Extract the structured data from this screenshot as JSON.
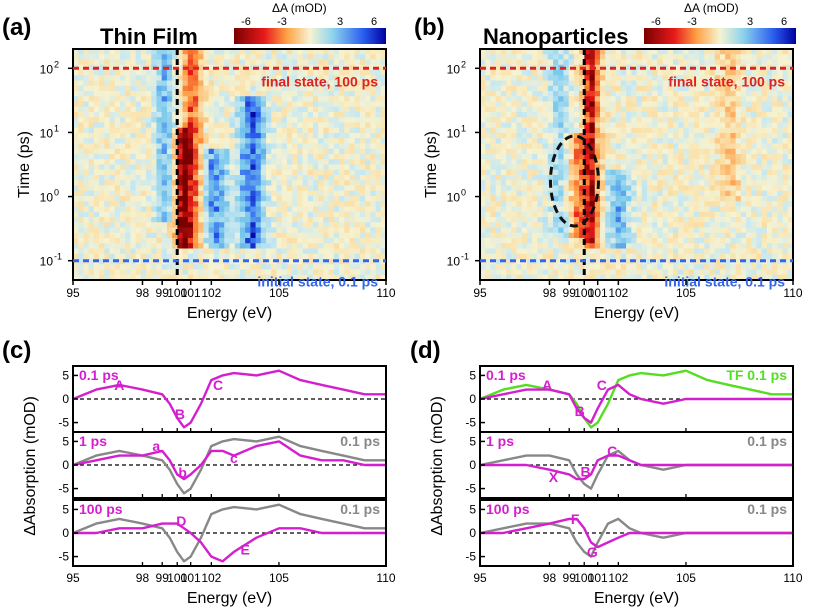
{
  "panels": {
    "a": {
      "letter": "(a)",
      "title": "Thin Film",
      "ylabel": "Time (ps)",
      "xlabel": "Energy (eV)",
      "xticks": [
        "95",
        "98",
        "99",
        "100",
        "101",
        "102",
        "105",
        "110"
      ],
      "yticks": [
        "10",
        "10",
        "10",
        "10"
      ],
      "yexps": [
        "2",
        "1",
        "0",
        "-1"
      ],
      "final_label": "final state, 100 ps",
      "initial_label": "initial state, 0.1 ps"
    },
    "b": {
      "letter": "(b)",
      "title": "Nanoparticles",
      "ylabel": "Time (ps)",
      "xlabel": "Energy (eV)",
      "xticks": [
        "95",
        "98",
        "99",
        "100",
        "101",
        "102",
        "105",
        "110"
      ],
      "yticks": [
        "10",
        "10",
        "10",
        "10"
      ],
      "yexps": [
        "2",
        "1",
        "0",
        "-1"
      ],
      "final_label": "final state, 100 ps",
      "initial_label": "initial state, 0.1 ps"
    },
    "c": {
      "letter": "(c)",
      "ylabel": "ΔAbsorption (mOD)",
      "xlabel": "Energy (eV)",
      "xticks": [
        "95",
        "98",
        "99",
        "100",
        "101",
        "102",
        "105",
        "110"
      ],
      "sub": [
        {
          "time": "0.1 ps",
          "ref": "",
          "yticks": [
            "5",
            "0",
            "-5"
          ],
          "letters": [
            {
              "t": "A",
              "e": 97.0,
              "v": 3
            },
            {
              "t": "B",
              "e": 100.2,
              "v": -3.2
            },
            {
              "t": "C",
              "e": 102.3,
              "v": 3
            }
          ]
        },
        {
          "time": "1 ps",
          "ref": "0.1 ps",
          "yticks": [
            "5",
            "0",
            "-5"
          ],
          "letters": [
            {
              "t": "a",
              "e": 98.7,
              "v": 4
            },
            {
              "t": "b",
              "e": 100.4,
              "v": -1.6
            },
            {
              "t": "c",
              "e": 103.0,
              "v": 1.5
            }
          ]
        },
        {
          "time": "100 ps",
          "ref": "0.1 ps",
          "yticks": [
            "5",
            "0",
            "-5"
          ],
          "letters": [
            {
              "t": "D",
              "e": 100.3,
              "v": 2.5
            },
            {
              "t": "E",
              "e": 103.5,
              "v": -3.5
            }
          ]
        }
      ]
    },
    "d": {
      "letter": "(d)",
      "ylabel": "ΔAbsorption (mOD)",
      "xlabel": "Energy (eV)",
      "xticks": [
        "95",
        "98",
        "99",
        "100",
        "101",
        "102",
        "105",
        "110"
      ],
      "sub": [
        {
          "time": "0.1 ps",
          "ref": "TF 0.1 ps",
          "yticks": [
            "5",
            "0",
            "-5"
          ],
          "letters": [
            {
              "t": "A",
              "e": 97.9,
              "v": 3
            },
            {
              "t": "B",
              "e": 99.7,
              "v": -2.5
            },
            {
              "t": "C",
              "e": 101.2,
              "v": 3
            }
          ]
        },
        {
          "time": "1 ps",
          "ref": "0.1 ps",
          "yticks": [
            "5",
            "0",
            "-5"
          ],
          "letters": [
            {
              "t": "C",
              "e": 101.7,
              "v": 3
            },
            {
              "t": "X",
              "e": 98.2,
              "v": -2.5
            },
            {
              "t": "B",
              "e": 100.1,
              "v": -1.4
            }
          ]
        },
        {
          "time": "100 ps",
          "ref": "0.1 ps",
          "yticks": [
            "5",
            "0",
            "-5"
          ],
          "letters": [
            {
              "t": "F",
              "e": 99.4,
              "v": 3
            },
            {
              "t": "G",
              "e": 100.6,
              "v": -4.0
            }
          ]
        }
      ]
    }
  },
  "colorbar": {
    "title": "ΔA (mOD)",
    "ticks": [
      "-6",
      "-3",
      "3",
      "6"
    ]
  },
  "colors": {
    "magenta": "#d41fcf",
    "gray": "#888888",
    "green": "#55dd22",
    "red_dash": "#dd2222",
    "blue_dash": "#3366ee"
  },
  "chart_data": [
    {
      "type": "heatmap",
      "panel": "a",
      "title": "Thin Film",
      "xlabel": "Energy (eV)",
      "ylabel": "Time (ps)",
      "xlim": [
        95,
        110
      ],
      "ylim": [
        0.05,
        200
      ],
      "yscale": "log",
      "zlabel": "ΔA (mOD)",
      "zlim": [
        -7,
        7
      ],
      "features": [
        {
          "e": 100.4,
          "t": [
            0.2,
            10
          ],
          "v": -6
        },
        {
          "e": 101.0,
          "t": [
            0.2,
            200
          ],
          "v": -4
        },
        {
          "e": 102.2,
          "t": [
            0.2,
            5
          ],
          "v": 4
        },
        {
          "e": 103.8,
          "t": [
            0.2,
            30
          ],
          "v": 5
        },
        {
          "e": 99.2,
          "t": [
            0.5,
            200
          ],
          "v": 3
        }
      ],
      "marked_lines": {
        "vertical_ev": 100,
        "final_ps": 100,
        "initial_ps": 0.1
      }
    },
    {
      "type": "heatmap",
      "panel": "b",
      "title": "Nanoparticles",
      "xlabel": "Energy (eV)",
      "ylabel": "Time (ps)",
      "xlim": [
        95,
        110
      ],
      "ylim": [
        0.05,
        200
      ],
      "yscale": "log",
      "zlabel": "ΔA (mOD)",
      "zlim": [
        -7,
        7
      ],
      "features": [
        {
          "e": 100.5,
          "t": [
            0.2,
            200
          ],
          "v": -6
        },
        {
          "e": 99.5,
          "t": [
            0.3,
            8
          ],
          "v": -3
        },
        {
          "e": 98.5,
          "t": [
            0.3,
            200
          ],
          "v": 2
        },
        {
          "e": 102.0,
          "t": [
            0.2,
            2
          ],
          "v": 3
        },
        {
          "e": 107.0,
          "t": [
            1,
            200
          ],
          "v": -1.5
        }
      ],
      "marked_lines": {
        "vertical_ev": 100,
        "final_ps": 100,
        "initial_ps": 0.1
      }
    },
    {
      "type": "line",
      "panel": "c",
      "xlabel": "Energy (eV)",
      "ylabel": "ΔAbsorption (mOD)",
      "xlim": [
        95,
        110
      ],
      "ylim": [
        -7,
        7
      ],
      "x": [
        95,
        96,
        97,
        98,
        99,
        99.5,
        100,
        100.5,
        101,
        101.5,
        102,
        102.5,
        103,
        104,
        105,
        106,
        107,
        108,
        109,
        110
      ],
      "series": [
        {
          "subplot": "0.1 ps",
          "values": [
            0,
            2,
            3,
            2,
            1,
            -1,
            -4,
            -6,
            -5,
            -1,
            4,
            5,
            5.5,
            5,
            6,
            4,
            3,
            2,
            1,
            1
          ]
        },
        {
          "subplot": "1 ps",
          "values": [
            0,
            1,
            2,
            2,
            3,
            1,
            -2,
            -3,
            -2,
            0,
            3,
            3,
            2,
            4,
            5,
            2,
            1,
            1,
            0,
            0
          ]
        },
        {
          "subplot": "1 ps",
          "name": "0.1 ps",
          "values": [
            0,
            2,
            3,
            2,
            1,
            -1,
            -4,
            -6,
            -5,
            -1,
            4,
            5,
            5.5,
            5,
            6,
            4,
            3,
            2,
            1,
            1
          ]
        },
        {
          "subplot": "100 ps",
          "values": [
            0,
            0,
            1,
            1,
            2,
            2,
            2,
            1,
            0,
            -2,
            -5,
            -6,
            -4,
            -1,
            1,
            1,
            0,
            0,
            0,
            0
          ]
        },
        {
          "subplot": "100 ps",
          "name": "0.1 ps",
          "values": [
            0,
            2,
            3,
            2,
            1,
            -1,
            -4,
            -6,
            -5,
            -1,
            4,
            5,
            5.5,
            5,
            6,
            4,
            3,
            2,
            1,
            1
          ]
        }
      ]
    },
    {
      "type": "line",
      "panel": "d",
      "xlabel": "Energy (eV)",
      "ylabel": "ΔAbsorption (mOD)",
      "xlim": [
        95,
        110
      ],
      "ylim": [
        -7,
        7
      ],
      "x": [
        95,
        96,
        97,
        98,
        99,
        99.5,
        100,
        100.5,
        101,
        101.5,
        102,
        102.5,
        103,
        104,
        105,
        106,
        107,
        108,
        109,
        110
      ],
      "series": [
        {
          "subplot": "0.1 ps",
          "values": [
            0,
            1,
            2,
            2,
            1,
            -2,
            -4,
            -5,
            -2,
            2,
            3,
            1,
            0,
            -1,
            0,
            0,
            0,
            0,
            0,
            0
          ]
        },
        {
          "subplot": "0.1 ps",
          "name": "TF 0.1 ps",
          "values": [
            0,
            2,
            3,
            2,
            1,
            -1,
            -4,
            -6,
            -5,
            -1,
            4,
            5,
            5.5,
            5,
            6,
            4,
            3,
            2,
            1,
            1
          ]
        },
        {
          "subplot": "1 ps",
          "values": [
            0,
            0,
            0,
            -1,
            -2,
            -3,
            -3,
            -2,
            1,
            2,
            2,
            1,
            0,
            0,
            0,
            0,
            0,
            0,
            0,
            0
          ]
        },
        {
          "subplot": "1 ps",
          "name": "0.1 ps",
          "values": [
            0,
            1,
            2,
            2,
            1,
            -2,
            -4,
            -5,
            -2,
            2,
            3,
            1,
            0,
            -1,
            0,
            0,
            0,
            0,
            0,
            0
          ]
        },
        {
          "subplot": "100 ps",
          "values": [
            0,
            0,
            1,
            2,
            3,
            3,
            1,
            -2,
            -3,
            -2,
            -1,
            0,
            0,
            0,
            0,
            0,
            0,
            0,
            0,
            0
          ]
        },
        {
          "subplot": "100 ps",
          "name": "0.1 ps",
          "values": [
            0,
            1,
            2,
            2,
            1,
            -2,
            -4,
            -5,
            -2,
            2,
            3,
            1,
            0,
            -1,
            0,
            0,
            0,
            0,
            0,
            0
          ]
        }
      ]
    }
  ]
}
